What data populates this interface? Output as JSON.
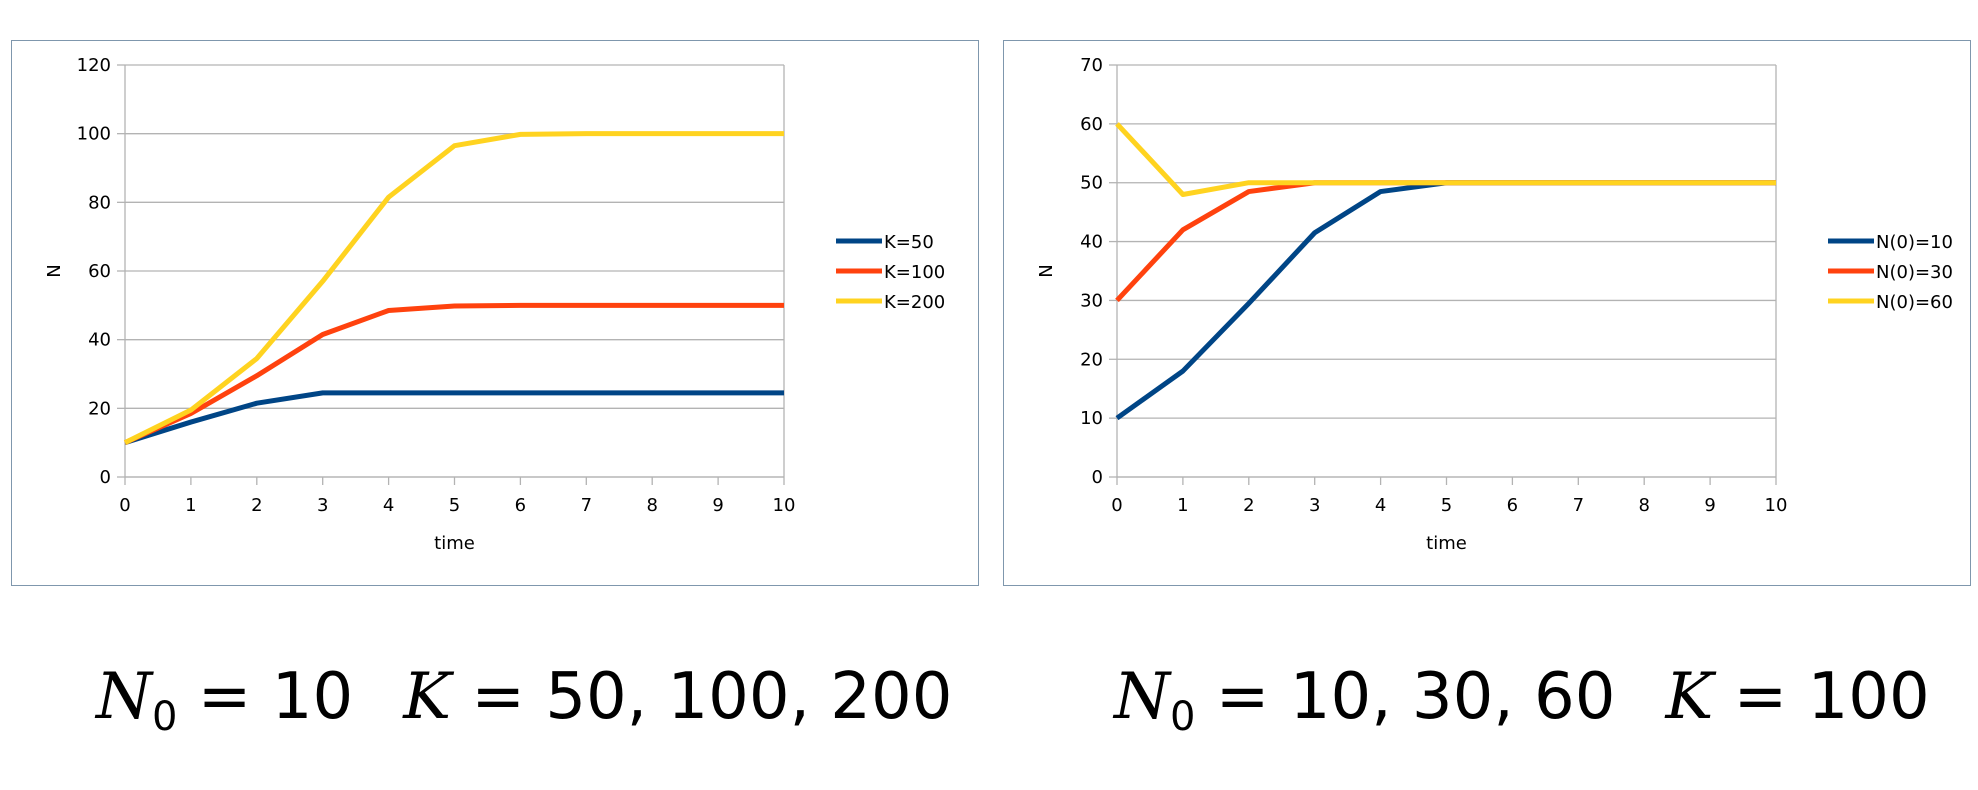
{
  "chart_data": [
    {
      "type": "line",
      "xlabel": "time",
      "ylabel": "N",
      "xlim": [
        0,
        10
      ],
      "ylim": [
        0,
        120
      ],
      "xticks": [
        0,
        1,
        2,
        3,
        4,
        5,
        6,
        7,
        8,
        9,
        10
      ],
      "yticks": [
        0,
        20,
        40,
        60,
        80,
        100,
        120
      ],
      "grid": "horizontal",
      "legend_position": "right",
      "x": [
        0,
        1,
        2,
        3,
        4,
        5,
        6,
        7,
        8,
        9,
        10
      ],
      "series": [
        {
          "name": "K=50",
          "color": "#004586",
          "values": [
            10,
            16,
            21.5,
            24.5,
            24.5,
            24.5,
            24.5,
            24.5,
            24.5,
            24.5,
            24.5
          ]
        },
        {
          "name": "K=100",
          "color": "#ff420e",
          "values": [
            10,
            18.5,
            29.5,
            41.5,
            48.5,
            49.8,
            50,
            50,
            50,
            50,
            50
          ]
        },
        {
          "name": "K=200",
          "color": "#ffd320",
          "values": [
            10,
            19.5,
            34.5,
            57,
            81.5,
            96.5,
            99.8,
            100,
            100,
            100,
            100
          ]
        }
      ]
    },
    {
      "type": "line",
      "xlabel": "time",
      "ylabel": "N",
      "xlim": [
        0,
        10
      ],
      "ylim": [
        0,
        70
      ],
      "xticks": [
        0,
        1,
        2,
        3,
        4,
        5,
        6,
        7,
        8,
        9,
        10
      ],
      "yticks": [
        0,
        10,
        20,
        30,
        40,
        50,
        60,
        70
      ],
      "grid": "horizontal",
      "legend_position": "right",
      "x": [
        0,
        1,
        2,
        3,
        4,
        5,
        6,
        7,
        8,
        9,
        10
      ],
      "series": [
        {
          "name": "N(0)=10",
          "color": "#004586",
          "values": [
            10,
            18,
            29.5,
            41.5,
            48.5,
            50,
            50,
            50,
            50,
            50,
            50
          ]
        },
        {
          "name": "N(0)=30",
          "color": "#ff420e",
          "values": [
            30,
            42,
            48.5,
            50,
            50,
            50,
            50,
            50,
            50,
            50,
            50
          ]
        },
        {
          "name": "N(0)=60",
          "color": "#ffd320",
          "values": [
            60,
            48,
            50,
            50,
            50,
            50,
            50,
            50,
            50,
            50,
            50
          ]
        }
      ]
    }
  ],
  "captions": {
    "left": {
      "n_symbol": "N",
      "n_sub": "0",
      "n_eq": " = 10",
      "k_symbol": "K",
      "k_eq": " = 50, 100, 200"
    },
    "right": {
      "n_symbol": "N",
      "n_sub": "0",
      "n_eq": " = 10, 30, 60",
      "k_symbol": "K",
      "k_eq": " = 100"
    }
  }
}
